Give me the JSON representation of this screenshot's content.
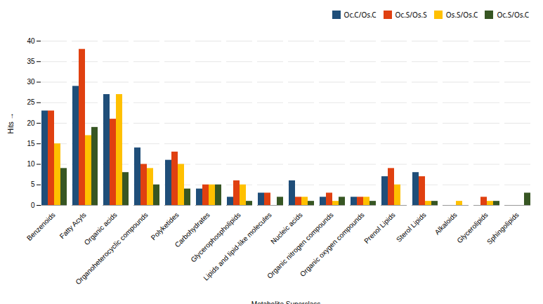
{
  "chart_data": {
    "type": "bar",
    "categories": [
      "Benzenoids",
      "Fatty Acyls",
      "Organic acids",
      "Organoheterocyclic compounds",
      "Polyketides",
      "Carbohydrates",
      "Glycerophospholipids",
      "Lipids and lipid-like molecules",
      "Nucleic acids",
      "Organic nitrogen compounds",
      "Organic oxygen compounds",
      "Prenol Lipids",
      "Sterol Lipids",
      "Alkaloids",
      "Glycerolipids",
      "Sphingolipids"
    ],
    "series": [
      {
        "name": "Oc.C/Os.C",
        "color": "#1F4E79",
        "values": [
          23,
          29,
          27,
          14,
          11,
          4,
          2,
          3,
          6,
          2,
          2,
          7,
          8,
          0,
          0,
          0
        ]
      },
      {
        "name": "Oc.S/Os.S",
        "color": "#E04010",
        "values": [
          23,
          38,
          21,
          10,
          13,
          5,
          6,
          3,
          2,
          3,
          2,
          9,
          7,
          0,
          2,
          0
        ]
      },
      {
        "name": "Os.S/Os.C",
        "color": "#FFC000",
        "values": [
          15,
          17,
          27,
          9,
          10,
          5,
          5,
          0,
          2,
          1,
          2,
          5,
          1,
          1,
          1,
          0
        ]
      },
      {
        "name": "Oc.S/Os.C",
        "color": "#375623",
        "values": [
          9,
          19,
          8,
          5,
          4,
          5,
          1,
          2,
          1,
          2,
          1,
          0,
          1,
          0,
          1,
          3
        ]
      }
    ],
    "xlabel": "Metabolite Superclass",
    "ylabel": "Hits",
    "ylim": [
      0,
      40
    ],
    "yticks": [
      0,
      5,
      10,
      15,
      20,
      25,
      30,
      35,
      40
    ],
    "grid": true,
    "legend": "upper right"
  }
}
